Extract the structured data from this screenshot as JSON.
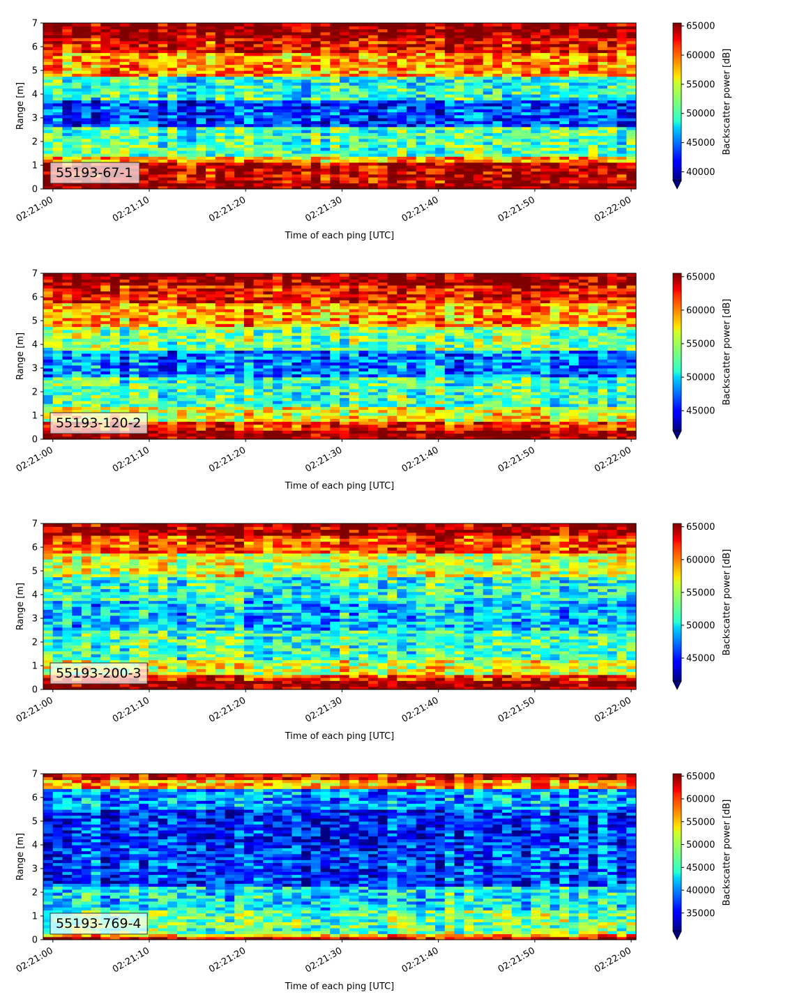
{
  "chart_data": [
    {
      "type": "heatmap",
      "annotation": "55193-67-1",
      "xlabel": "Time of each ping [UTC]",
      "ylabel": "Range [m]",
      "x_ticks": [
        "02:21:00",
        "02:21:10",
        "02:21:20",
        "02:21:30",
        "02:21:40",
        "02:21:50",
        "02:22:00"
      ],
      "x_range_seconds": [
        -1,
        60.5
      ],
      "y_ticks": [
        "0",
        "1",
        "2",
        "3",
        "4",
        "5",
        "6",
        "7"
      ],
      "ylim": [
        0,
        7
      ],
      "colorbar": {
        "label": "Backscatter power [dB]",
        "ticks": [
          "40000",
          "45000",
          "50000",
          "55000",
          "60000",
          "65000"
        ],
        "range": [
          38500,
          65500
        ],
        "extend": "min"
      },
      "band_profile": [
        {
          "top_m": 0.25,
          "level": 1.0
        },
        {
          "top_m": 1.1,
          "level": 0.92
        },
        {
          "top_m": 1.4,
          "level": 0.7
        },
        {
          "top_m": 2.6,
          "level": 0.45
        },
        {
          "top_m": 3.8,
          "level": 0.18
        },
        {
          "top_m": 4.7,
          "level": 0.4
        },
        {
          "top_m": 5.7,
          "level": 0.72
        },
        {
          "top_m": 6.4,
          "level": 0.88
        },
        {
          "top_m": 7.0,
          "level": 0.98
        }
      ]
    },
    {
      "type": "heatmap",
      "annotation": "55193-120-2",
      "xlabel": "Time of each ping [UTC]",
      "ylabel": "Range [m]",
      "x_ticks": [
        "02:21:00",
        "02:21:10",
        "02:21:20",
        "02:21:30",
        "02:21:40",
        "02:21:50",
        "02:22:00"
      ],
      "x_range_seconds": [
        -1,
        60.5
      ],
      "y_ticks": [
        "0",
        "1",
        "2",
        "3",
        "4",
        "5",
        "6",
        "7"
      ],
      "ylim": [
        0,
        7
      ],
      "colorbar": {
        "label": "Backscatter power [dB]",
        "ticks": [
          "45000",
          "50000",
          "55000",
          "60000",
          "65000"
        ],
        "range": [
          42000,
          65500
        ],
        "extend": "min"
      },
      "band_profile": [
        {
          "top_m": 0.35,
          "level": 1.0
        },
        {
          "top_m": 0.7,
          "level": 0.85
        },
        {
          "top_m": 1.4,
          "level": 0.62
        },
        {
          "top_m": 2.6,
          "level": 0.45
        },
        {
          "top_m": 3.8,
          "level": 0.25
        },
        {
          "top_m": 4.8,
          "level": 0.5
        },
        {
          "top_m": 5.8,
          "level": 0.72
        },
        {
          "top_m": 6.5,
          "level": 0.88
        },
        {
          "top_m": 7.0,
          "level": 0.98
        }
      ]
    },
    {
      "type": "heatmap",
      "annotation": "55193-200-3",
      "xlabel": "Time of each ping [UTC]",
      "ylabel": "Range [m]",
      "x_ticks": [
        "02:21:00",
        "02:21:10",
        "02:21:20",
        "02:21:30",
        "02:21:40",
        "02:21:50",
        "02:22:00"
      ],
      "x_range_seconds": [
        -1,
        60.5
      ],
      "y_ticks": [
        "0",
        "1",
        "2",
        "3",
        "4",
        "5",
        "6",
        "7"
      ],
      "ylim": [
        0,
        7
      ],
      "colorbar": {
        "label": "Backscatter power [dB]",
        "ticks": [
          "45000",
          "50000",
          "55000",
          "60000",
          "65000"
        ],
        "range": [
          41500,
          65500
        ],
        "extend": "min"
      },
      "band_profile": [
        {
          "top_m": 0.35,
          "level": 1.0
        },
        {
          "top_m": 0.6,
          "level": 0.85
        },
        {
          "top_m": 1.3,
          "level": 0.6
        },
        {
          "top_m": 2.5,
          "level": 0.45
        },
        {
          "top_m": 3.8,
          "level": 0.33
        },
        {
          "top_m": 4.8,
          "level": 0.42
        },
        {
          "top_m": 5.8,
          "level": 0.6
        },
        {
          "top_m": 6.5,
          "level": 0.82
        },
        {
          "top_m": 7.0,
          "level": 0.97
        }
      ]
    },
    {
      "type": "heatmap",
      "annotation": "55193-769-4",
      "xlabel": "Time of each ping [UTC]",
      "ylabel": "Range [m]",
      "x_ticks": [
        "02:21:00",
        "02:21:10",
        "02:21:20",
        "02:21:30",
        "02:21:40",
        "02:21:50",
        "02:22:00"
      ],
      "x_range_seconds": [
        -1,
        60.5
      ],
      "y_ticks": [
        "0",
        "1",
        "2",
        "3",
        "4",
        "5",
        "6",
        "7"
      ],
      "ylim": [
        0,
        7
      ],
      "colorbar": {
        "label": "Backscatter power [dB]",
        "ticks": [
          "35000",
          "40000",
          "45000",
          "50000",
          "55000",
          "60000",
          "65000"
        ],
        "range": [
          31000,
          65500
        ],
        "extend": "min"
      },
      "band_profile": [
        {
          "top_m": 0.18,
          "level": 0.95
        },
        {
          "top_m": 0.3,
          "level": 0.72
        },
        {
          "top_m": 1.3,
          "level": 0.5
        },
        {
          "top_m": 2.3,
          "level": 0.38
        },
        {
          "top_m": 4.0,
          "level": 0.2
        },
        {
          "top_m": 5.5,
          "level": 0.17
        },
        {
          "top_m": 6.4,
          "level": 0.3
        },
        {
          "top_m": 6.8,
          "level": 0.72
        },
        {
          "top_m": 7.0,
          "level": 0.9
        }
      ]
    }
  ]
}
